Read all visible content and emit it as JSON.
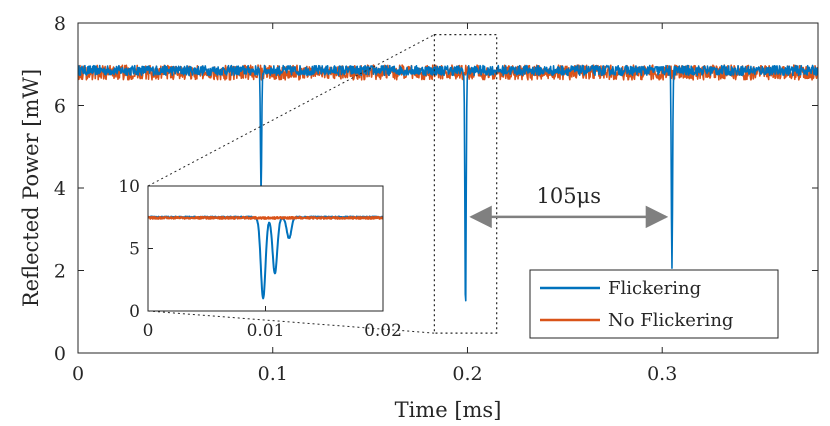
{
  "chart_data": {
    "type": "line",
    "xlabel": "Time [ms]",
    "ylabel": "Reflected Power [mW]",
    "xlim": [
      0,
      0.38
    ],
    "ylim": [
      0,
      8
    ],
    "x_ticks": [
      "0",
      "0.1",
      "0.2",
      "0.3"
    ],
    "y_ticks": [
      "0",
      "2",
      "4",
      "6",
      "8"
    ],
    "series": [
      {
        "name": "Flickering",
        "color": "#0072BD",
        "baseline_mW": 6.85,
        "noise_mW": 0.12,
        "dips": [
          {
            "time_ms": 0.094,
            "min_mW": 3.9
          },
          {
            "time_ms": 0.199,
            "min_mW": 0.9
          },
          {
            "time_ms": 0.305,
            "min_mW": 2.1
          }
        ]
      },
      {
        "name": "No Flickering",
        "color": "#D95319",
        "baseline_mW": 6.8,
        "noise_mW": 0.18,
        "dips": []
      }
    ],
    "annotation": {
      "text": "105μs",
      "from_ms": 0.199,
      "to_ms": 0.305,
      "y_mW": 3.3
    },
    "zoom_box": {
      "x_ms": [
        0.183,
        0.215
      ],
      "y_mW": [
        0.7,
        7.5
      ]
    },
    "legend": {
      "position": "bottom-right",
      "entries": [
        "Flickering",
        "No Flickering"
      ]
    },
    "inset": {
      "xlim": [
        0,
        0.02
      ],
      "ylim": [
        0,
        10
      ],
      "x_ticks": [
        "0",
        "0.01",
        "0.02"
      ],
      "y_ticks": [
        "0",
        "5",
        "10"
      ],
      "flickering_baseline": 7.5,
      "no_flickering_baseline": 7.45,
      "dips": [
        {
          "time_ms": 0.0098,
          "min": 1.0
        },
        {
          "time_ms": 0.0108,
          "min": 3.0
        },
        {
          "time_ms": 0.012,
          "min": 5.8
        }
      ]
    }
  }
}
